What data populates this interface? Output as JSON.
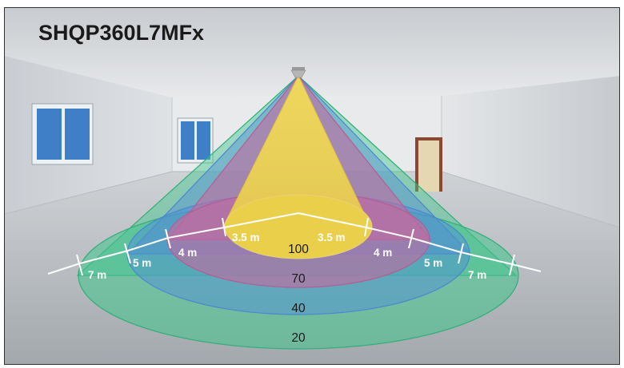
{
  "title": "SHQP360L7MFx",
  "distances": {
    "left": [
      "7 m",
      "5 m",
      "4 m",
      "3.5 m"
    ],
    "right": [
      "3.5 m",
      "4 m",
      "5 m",
      "7 m"
    ]
  },
  "levels": [
    "100",
    "70",
    "40",
    "20"
  ],
  "zone_colors": {
    "outer_20": "#3fc58c",
    "zone_40": "#4f8fd6",
    "zone_70": "#c46aa0",
    "inner_100": "#f0d040"
  },
  "icons": {
    "sensor": "ceiling-sensor-icon"
  }
}
